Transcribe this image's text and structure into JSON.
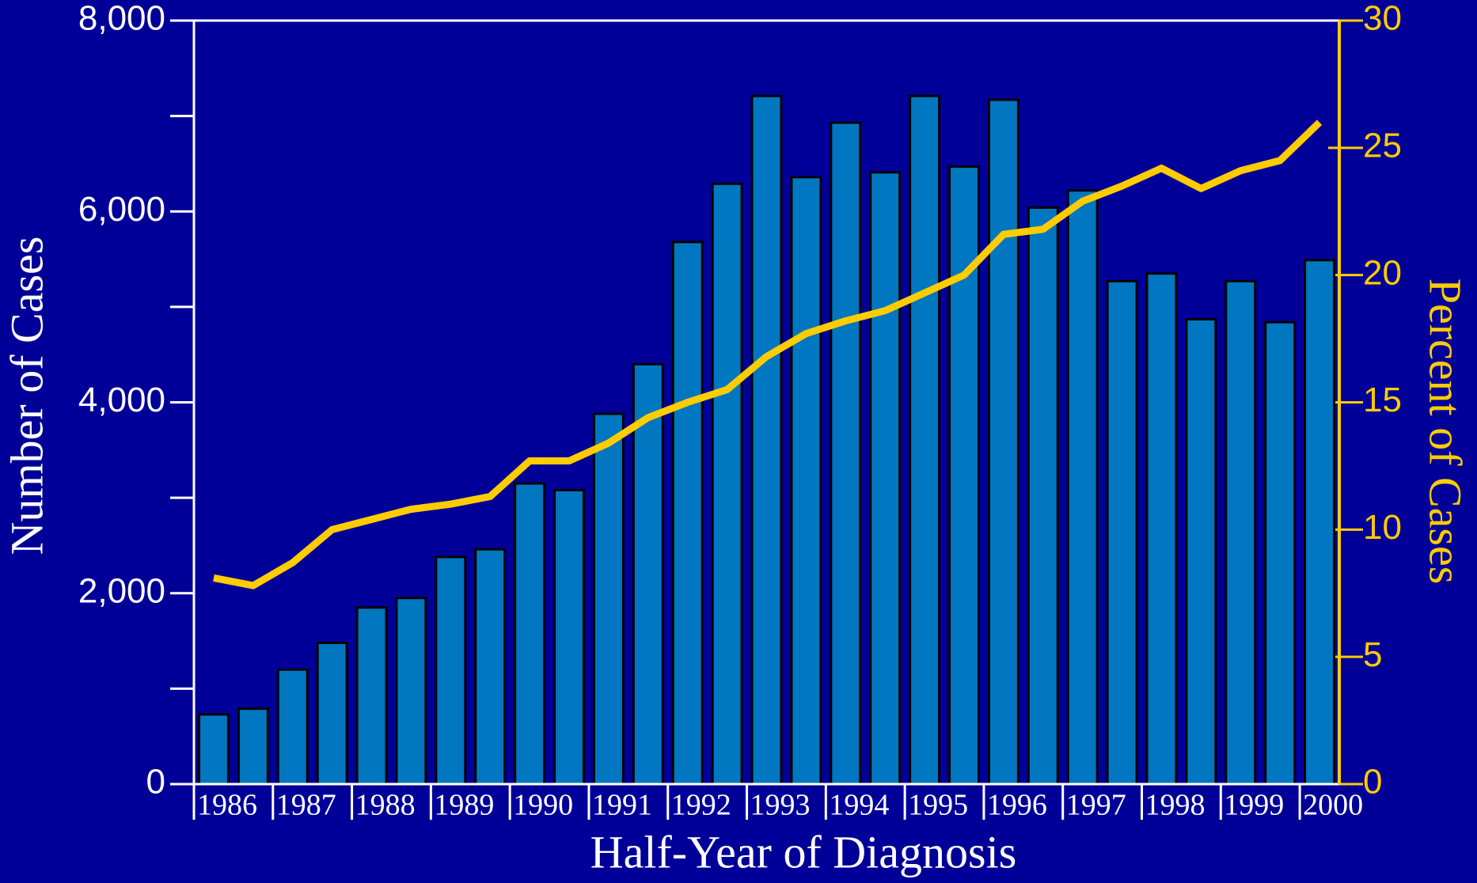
{
  "chart_data": {
    "type": "bar",
    "background": "#000099",
    "x_label": "Half-Year of Diagnosis",
    "y_label": "Number of Cases",
    "y2_label": "Percent of Cases",
    "categories": [
      "1986",
      null,
      "1987",
      null,
      "1988",
      null,
      "1989",
      null,
      "1990",
      null,
      "1991",
      null,
      "1992",
      null,
      "1993",
      null,
      "1994",
      null,
      "1995",
      null,
      "1996",
      null,
      "1997",
      null,
      "1998",
      null,
      "1999",
      null,
      "2000"
    ],
    "series": [
      {
        "type": "bar",
        "color": "#0077c0",
        "values": [
          730,
          790,
          1200,
          1480,
          1850,
          1950,
          2380,
          2460,
          3150,
          3080,
          3880,
          4400,
          5680,
          6290,
          7210,
          6360,
          6930,
          6410,
          7210,
          6470,
          7170,
          6040,
          6220,
          5270,
          5350,
          4870,
          5270,
          4840,
          5490
        ]
      },
      {
        "type": "line",
        "axis": "y2",
        "color": "#ffcc00",
        "values": [
          8.1,
          7.8,
          8.7,
          10.0,
          10.4,
          10.8,
          11.0,
          11.3,
          12.7,
          12.7,
          13.4,
          14.4,
          15.0,
          15.5,
          16.8,
          17.7,
          18.2,
          18.6,
          19.3,
          20.0,
          21.6,
          21.8,
          22.9,
          23.5,
          24.2,
          23.4,
          24.1,
          24.5,
          26.0
        ]
      }
    ],
    "ylim": [
      0,
      8000
    ],
    "yticks": [
      0,
      {
        "value": 2000,
        "label": "2,000"
      },
      {
        "value": 4000,
        "label": "4,000"
      },
      {
        "value": 6000,
        "label": "6,000"
      },
      {
        "value": 8000,
        "label": "8,000"
      }
    ],
    "yminorticks": [
      1000,
      3000,
      5000,
      7000
    ],
    "y2lim": [
      0,
      30
    ],
    "y2ticks": [
      0,
      5,
      10,
      15,
      20,
      25,
      30
    ]
  }
}
